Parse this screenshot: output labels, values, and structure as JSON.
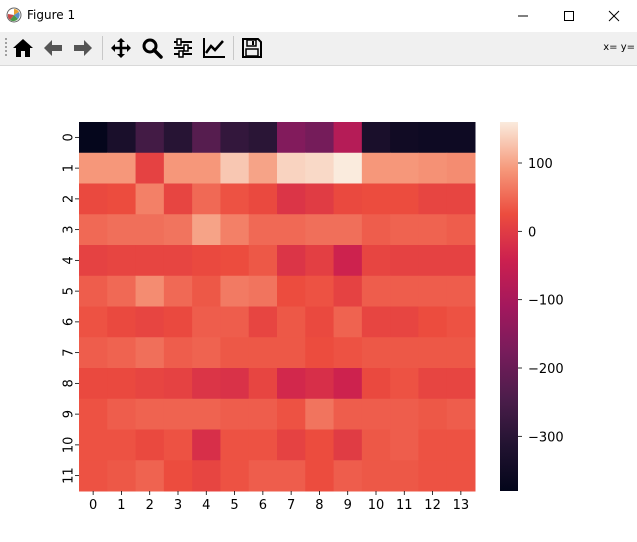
{
  "window": {
    "title": "Figure 1",
    "controls": [
      "minimize",
      "maximize",
      "close"
    ]
  },
  "toolbar": {
    "buttons": [
      {
        "name": "home",
        "icon": "home-icon"
      },
      {
        "name": "back",
        "icon": "arrow-left-icon"
      },
      {
        "name": "forward",
        "icon": "arrow-right-icon"
      },
      {
        "name": "pan",
        "icon": "move-icon"
      },
      {
        "name": "zoom",
        "icon": "zoom-icon"
      },
      {
        "name": "subplots",
        "icon": "sliders-icon"
      },
      {
        "name": "edit-axis",
        "icon": "line-chart-icon"
      },
      {
        "name": "save",
        "icon": "floppy-icon"
      }
    ],
    "coords": "x= y="
  },
  "chart_data": {
    "type": "heatmap",
    "title": "",
    "xlabel": "",
    "ylabel": "",
    "x_ticks": [
      "0",
      "1",
      "2",
      "3",
      "4",
      "5",
      "6",
      "7",
      "8",
      "9",
      "10",
      "11",
      "12",
      "13"
    ],
    "y_ticks": [
      "0",
      "1",
      "2",
      "3",
      "4",
      "5",
      "6",
      "7",
      "8",
      "9",
      "10",
      "11"
    ],
    "colormap": "rocket",
    "vmin": -380,
    "vmax": 160,
    "colorbar_ticks": [
      100,
      0,
      -100,
      -200,
      -300
    ],
    "values": [
      [
        -375,
        -330,
        -260,
        -305,
        -230,
        -285,
        -300,
        -160,
        -180,
        -80,
        -330,
        -350,
        -355,
        -355
      ],
      [
        90,
        90,
        10,
        90,
        90,
        130,
        100,
        140,
        145,
        160,
        90,
        90,
        85,
        80
      ],
      [
        20,
        25,
        70,
        15,
        50,
        30,
        20,
        -10,
        0,
        20,
        25,
        25,
        15,
        15
      ],
      [
        50,
        55,
        55,
        60,
        100,
        70,
        50,
        50,
        55,
        55,
        40,
        45,
        45,
        40
      ],
      [
        10,
        15,
        15,
        15,
        20,
        25,
        35,
        -10,
        5,
        -40,
        15,
        10,
        10,
        10
      ],
      [
        40,
        50,
        80,
        50,
        35,
        65,
        60,
        25,
        30,
        10,
        40,
        40,
        40,
        40
      ],
      [
        30,
        20,
        15,
        20,
        40,
        40,
        15,
        35,
        20,
        45,
        15,
        15,
        25,
        30
      ],
      [
        40,
        45,
        55,
        40,
        45,
        35,
        35,
        35,
        25,
        30,
        35,
        35,
        35,
        35
      ],
      [
        20,
        20,
        15,
        10,
        -10,
        -15,
        15,
        -30,
        -20,
        -40,
        20,
        30,
        15,
        15
      ],
      [
        30,
        40,
        45,
        45,
        45,
        40,
        40,
        30,
        60,
        40,
        40,
        40,
        35,
        40
      ],
      [
        30,
        30,
        20,
        30,
        -20,
        30,
        30,
        10,
        25,
        0,
        35,
        40,
        30,
        30
      ],
      [
        30,
        35,
        45,
        25,
        15,
        30,
        40,
        40,
        25,
        40,
        35,
        35,
        30,
        30
      ]
    ]
  }
}
